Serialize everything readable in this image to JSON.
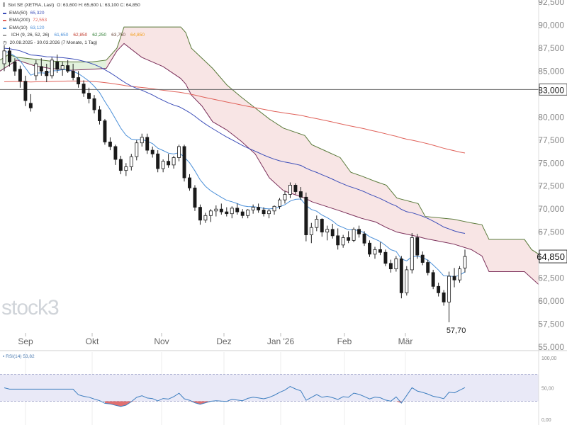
{
  "header": {
    "title": "Sixt SE (XETRA, Last)",
    "ohlc": "O: 63,600  H: 65,600  L: 63,100  C: 64,850",
    "range": "20.08.2025 - 30.03.2026  (7 Monate, 1 Tag)"
  },
  "legend": [
    {
      "label": "EMA(50)",
      "value": "65,320",
      "color": "#3b4db8"
    },
    {
      "label": "EMA(200)",
      "value": "72,553",
      "color": "#e0625a"
    },
    {
      "label": "EMA(10)",
      "value": "63,120",
      "color": "#4a8fd8"
    }
  ],
  "ichimoku": {
    "label": "ICH (9, 26, 52, 26)",
    "values": [
      "61,650",
      "62,850",
      "62,250",
      "63,750",
      "64,850"
    ]
  },
  "watermark": "stock3",
  "price_labels": {
    "last": "64,850",
    "hline": "83,000",
    "low": "57,70"
  },
  "chart_data": {
    "type": "candlestick",
    "y_range": [
      55,
      92.5
    ],
    "y_ticks": [
      "92,500",
      "90,000",
      "87,500",
      "85,000",
      "83,000",
      "80,000",
      "77,500",
      "75,000",
      "72,500",
      "70,000",
      "67,500",
      "65,000",
      "62,500",
      "60,000",
      "57,500",
      "55,000"
    ],
    "x_months": [
      "Sep",
      "Okt",
      "Nov",
      "Dez",
      "Jan '26",
      "Feb",
      "Mär"
    ],
    "horizontal_line": 83.0,
    "low_annotation": 57.7,
    "candles": [
      [
        85.8,
        87.8,
        85.0,
        87.2
      ],
      [
        87.2,
        87.6,
        85.5,
        86.0
      ],
      [
        86.0,
        86.4,
        84.5,
        85.0
      ],
      [
        85.2,
        85.6,
        83.2,
        83.9
      ],
      [
        83.9,
        84.5,
        81.2,
        81.8
      ],
      [
        81.5,
        82.5,
        80.6,
        81.0
      ],
      [
        84.5,
        86.2,
        84.0,
        85.8
      ],
      [
        85.5,
        86.4,
        84.5,
        85.0
      ],
      [
        85.0,
        85.8,
        83.8,
        84.5
      ],
      [
        84.5,
        86.5,
        84.2,
        86.2
      ],
      [
        86.0,
        86.8,
        84.8,
        85.2
      ],
      [
        85.2,
        86.0,
        84.5,
        85.6
      ],
      [
        85.6,
        86.2,
        84.8,
        85.0
      ],
      [
        85.0,
        85.8,
        84.0,
        84.3
      ],
      [
        84.3,
        85.0,
        83.2,
        83.6
      ],
      [
        83.6,
        84.0,
        82.2,
        82.6
      ],
      [
        82.6,
        83.2,
        81.5,
        82.0
      ],
      [
        82.0,
        82.4,
        80.4,
        80.8
      ],
      [
        80.8,
        81.2,
        79.2,
        79.6
      ],
      [
        79.6,
        79.8,
        77.0,
        77.3
      ],
      [
        77.3,
        77.8,
        76.4,
        76.8
      ],
      [
        76.8,
        77.0,
        74.8,
        75.4
      ],
      [
        75.4,
        75.8,
        73.8,
        74.2
      ],
      [
        74.2,
        75.0,
        73.6,
        74.6
      ],
      [
        74.6,
        76.0,
        74.2,
        75.7
      ],
      [
        75.7,
        77.5,
        75.3,
        77.2
      ],
      [
        77.2,
        78.2,
        76.8,
        77.8
      ],
      [
        77.8,
        78.2,
        76.0,
        76.4
      ],
      [
        76.4,
        76.8,
        75.6,
        76.0
      ],
      [
        76.0,
        76.4,
        74.0,
        74.4
      ],
      [
        74.4,
        75.4,
        74.0,
        75.2
      ],
      [
        75.2,
        76.0,
        74.5,
        74.8
      ],
      [
        74.8,
        75.8,
        74.4,
        75.6
      ],
      [
        75.6,
        77.0,
        75.2,
        76.8
      ],
      [
        76.8,
        77.0,
        73.0,
        73.4
      ],
      [
        73.4,
        73.8,
        72.0,
        72.3
      ],
      [
        72.3,
        72.6,
        69.8,
        70.2
      ],
      [
        70.2,
        70.5,
        68.3,
        68.8
      ],
      [
        68.8,
        69.6,
        68.5,
        69.3
      ],
      [
        69.3,
        70.0,
        68.6,
        69.8
      ],
      [
        69.8,
        70.4,
        69.2,
        70.0
      ],
      [
        70.0,
        70.6,
        69.4,
        69.7
      ],
      [
        69.7,
        70.2,
        69.2,
        69.5
      ],
      [
        69.5,
        70.3,
        69.0,
        70.1
      ],
      [
        70.1,
        70.6,
        69.4,
        69.7
      ],
      [
        69.7,
        70.0,
        69.0,
        69.3
      ],
      [
        69.3,
        70.0,
        69.0,
        69.9
      ],
      [
        69.9,
        70.5,
        69.5,
        70.2
      ],
      [
        70.2,
        70.6,
        69.6,
        69.9
      ],
      [
        69.9,
        70.2,
        69.2,
        69.5
      ],
      [
        69.5,
        70.0,
        69.0,
        69.8
      ],
      [
        69.8,
        70.4,
        69.4,
        70.3
      ],
      [
        70.3,
        71.2,
        70.0,
        71.0
      ],
      [
        71.0,
        72.0,
        70.6,
        71.6
      ],
      [
        71.6,
        72.9,
        71.2,
        72.6
      ],
      [
        72.6,
        72.8,
        71.6,
        71.9
      ],
      [
        71.9,
        72.4,
        71.0,
        71.3
      ],
      [
        71.3,
        71.8,
        66.5,
        67.2
      ],
      [
        67.2,
        68.5,
        66.3,
        68.0
      ],
      [
        68.0,
        69.3,
        67.6,
        68.9
      ],
      [
        68.9,
        69.0,
        67.0,
        67.5
      ],
      [
        67.5,
        68.2,
        66.6,
        67.8
      ],
      [
        67.8,
        68.4,
        66.8,
        67.1
      ],
      [
        67.1,
        67.9,
        65.6,
        66.1
      ],
      [
        66.1,
        67.2,
        65.8,
        66.9
      ],
      [
        66.9,
        67.6,
        66.3,
        66.6
      ],
      [
        66.6,
        68.0,
        66.4,
        67.8
      ],
      [
        67.8,
        68.2,
        66.9,
        67.3
      ],
      [
        67.3,
        67.6,
        66.0,
        66.3
      ],
      [
        66.3,
        66.6,
        64.8,
        65.1
      ],
      [
        65.1,
        65.9,
        64.6,
        65.6
      ],
      [
        65.6,
        66.4,
        65.0,
        65.3
      ],
      [
        65.3,
        65.6,
        63.8,
        64.1
      ],
      [
        64.1,
        64.5,
        63.1,
        63.5
      ],
      [
        63.5,
        64.9,
        63.2,
        64.6
      ],
      [
        64.6,
        64.9,
        60.3,
        60.9
      ],
      [
        60.9,
        63.8,
        60.6,
        63.4
      ],
      [
        63.4,
        67.4,
        63.0,
        66.9
      ],
      [
        66.9,
        67.3,
        64.6,
        65.0
      ],
      [
        65.0,
        65.4,
        63.9,
        64.2
      ],
      [
        64.2,
        64.5,
        62.8,
        63.1
      ],
      [
        63.1,
        63.4,
        61.3,
        61.6
      ],
      [
        61.6,
        62.0,
        60.5,
        60.9
      ],
      [
        60.9,
        61.2,
        59.5,
        59.9
      ],
      [
        59.9,
        63.2,
        57.7,
        62.7
      ],
      [
        62.7,
        63.6,
        61.5,
        62.3
      ],
      [
        62.3,
        63.8,
        62.0,
        63.5
      ],
      [
        63.6,
        65.6,
        63.1,
        64.85
      ]
    ],
    "ema50_last": 65.32,
    "ema200_last": 72.553,
    "ema10_last": 63.12,
    "rsi": {
      "label": "RSI(14)",
      "value": "53,82",
      "levels": [
        "100,00",
        "50,00",
        "0,00"
      ],
      "overbought": 70,
      "oversold": 30
    }
  }
}
